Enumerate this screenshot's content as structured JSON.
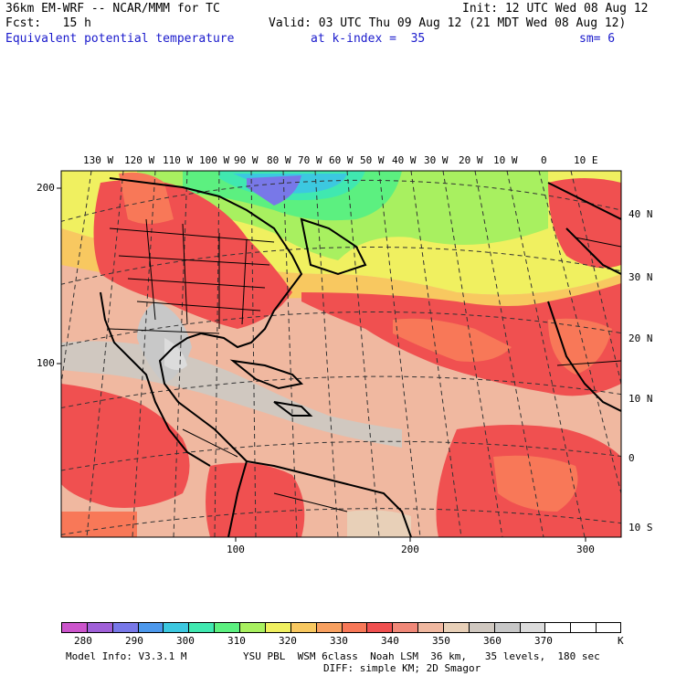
{
  "header": {
    "model": "36km EM-WRF -- NCAR/MMM for TC",
    "init": "Init: 12 UTC Wed 08 Aug 12",
    "fcst": "Fcst:   15 h",
    "valid": "Valid: 03 UTC Thu 09 Aug 12 (21 MDT Wed 08 Aug 12)",
    "field": "Equivalent potential temperature",
    "level": "at k-index =  35",
    "smooth": "sm= 6"
  },
  "map": {
    "top_lon_labels": [
      "130 W",
      "120 W",
      "110 W",
      "100 W",
      "90 W",
      "80 W",
      "70 W",
      "60 W",
      "50 W",
      "40 W",
      "30 W",
      "20 W",
      "10 W",
      "0",
      "10 E"
    ],
    "right_lat_labels": [
      "40 N",
      "30 N",
      "20 N",
      "10 N",
      "0",
      "10 S"
    ],
    "left_grid_labels": [
      "200",
      "100"
    ],
    "bottom_grid_labels": [
      "100",
      "200",
      "300"
    ]
  },
  "colorbar": {
    "unit": "K",
    "labels": [
      "280",
      "290",
      "300",
      "310",
      "320",
      "330",
      "340",
      "350",
      "360",
      "370"
    ],
    "colors": [
      "#cc55cc",
      "#a060d8",
      "#7878e8",
      "#4c98ec",
      "#3cc8e0",
      "#40e8b0",
      "#5cf080",
      "#a8f060",
      "#f0f060",
      "#f8c860",
      "#f8a060",
      "#f87858",
      "#f05050",
      "#f08878",
      "#f0b8a0",
      "#e8d0b8",
      "#d0c8c0",
      "#c8c8c8",
      "#dcdcdc",
      "#ffffff",
      "#ffffff",
      "#ffffff"
    ]
  },
  "footer": {
    "model_info": "Model Info: V3.3.1 M",
    "physics": "YSU PBL  WSM 6class  Noah LSM  36 km,   35 levels,  180 sec",
    "diffusion": "DIFF: simple KM; 2D Smagor"
  }
}
